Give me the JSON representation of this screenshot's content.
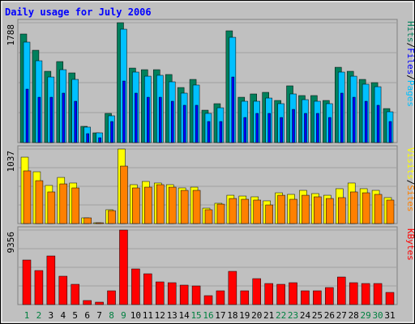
{
  "chart_data": {
    "type": "bar",
    "title": "Daily usage for July 2006",
    "legend_separator": "/",
    "categories": [
      "1",
      "2",
      "3",
      "4",
      "5",
      "6",
      "7",
      "8",
      "9",
      "10",
      "11",
      "12",
      "13",
      "14",
      "15",
      "16",
      "17",
      "18",
      "19",
      "20",
      "21",
      "22",
      "23",
      "24",
      "25",
      "26",
      "27",
      "28",
      "29",
      "30",
      "31"
    ],
    "label_colors": [
      "#008040",
      "#008040",
      "#000000",
      "#000000",
      "#000000",
      "#000000",
      "#000000",
      "#008040",
      "#008040",
      "#000000",
      "#000000",
      "#000000",
      "#000000",
      "#000000",
      "#008040",
      "#008040",
      "#000000",
      "#000000",
      "#000000",
      "#000000",
      "#000000",
      "#008040",
      "#008040",
      "#000000",
      "#000000",
      "#000000",
      "#000000",
      "#000000",
      "#008040",
      "#008040",
      "#000000"
    ],
    "panels": [
      {
        "ylim": [
          0,
          1788
        ],
        "yticks": [
          1788
        ],
        "series": [
          {
            "name": "Pages",
            "color": "#00c0ff",
            "values": [
              1498,
              1220,
              978,
              1087,
              942,
              230,
              145,
              399,
              1691,
              1051,
              990,
              1003,
              906,
              737,
              858,
              435,
              519,
              1570,
              616,
              616,
              664,
              580,
              725,
              640,
              616,
              580,
              1051,
              990,
              870,
              833,
              459
            ]
          },
          {
            "name": "Files",
            "color": "#0000ff",
            "values": [
              797,
              676,
              676,
              737,
              616,
              133,
              72,
              314,
              918,
              737,
              676,
              676,
              616,
              556,
              556,
              314,
              314,
              978,
              374,
              435,
              435,
              374,
              495,
              435,
              435,
              374,
              737,
              676,
              616,
              556,
              314
            ]
          },
          {
            "name": "Hits",
            "color": "#00805c",
            "values": [
              1619,
              1377,
              1063,
              1208,
              1039,
              242,
              145,
              435,
              1788,
              1111,
              1087,
              1087,
              1015,
              821,
              942,
              483,
              580,
              1667,
              676,
              725,
              749,
              628,
              846,
              701,
              701,
              628,
              1123,
              1063,
              942,
              894,
              507
            ]
          }
        ]
      },
      {
        "ylim": [
          0,
          1037
        ],
        "yticks": [
          1037
        ],
        "series": [
          {
            "name": "Sites",
            "color": "#ff8000",
            "values": [
              733,
              597,
              440,
              552,
              496,
              79,
              11,
              180,
              800,
              496,
              507,
              541,
              507,
              462,
              462,
              192,
              270,
              349,
              338,
              327,
              259,
              394,
              338,
              394,
              372,
              349,
              361,
              440,
              428,
              406,
              327
            ]
          },
          {
            "name": "Visits",
            "color": "#ffff00",
            "values": [
              924,
              721,
              530,
              642,
              564,
              79,
              11,
              192,
              1037,
              541,
              586,
              564,
              541,
              496,
              507,
              214,
              282,
              394,
              383,
              372,
              316,
              428,
              406,
              462,
              417,
              394,
              485,
              564,
              485,
              462,
              361
            ]
          }
        ]
      },
      {
        "ylim": [
          0,
          9356
        ],
        "yticks": [
          9356
        ],
        "series": [
          {
            "name": "KBytes",
            "color": "#ff0000",
            "values": [
              5594,
              4272,
              6102,
              3560,
              2543,
              509,
              305,
              1729,
              9356,
              4475,
              3865,
              2848,
              2746,
              2441,
              2339,
              1119,
              1729,
              4170,
              1729,
              3255,
              2644,
              2543,
              2746,
              1729,
              1729,
              2136,
              3458,
              2746,
              2644,
              2644,
              1526
            ]
          }
        ]
      }
    ]
  }
}
